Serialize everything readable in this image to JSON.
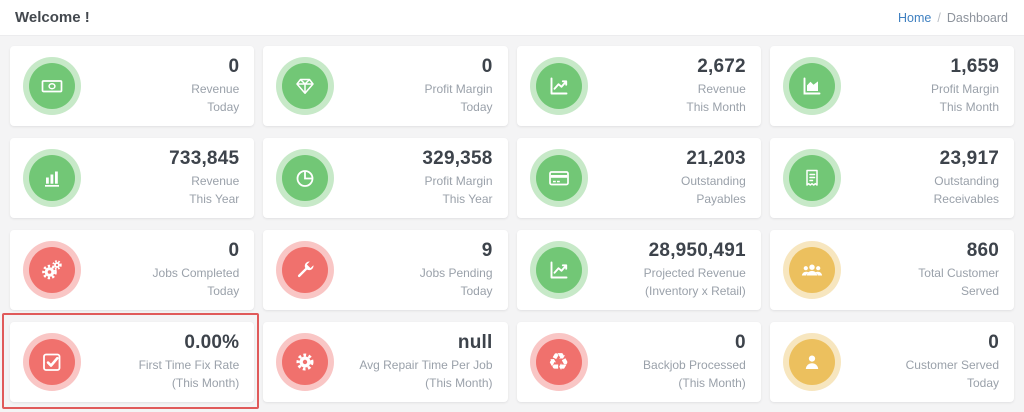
{
  "header": {
    "title": "Welcome !",
    "breadcrumb": {
      "home": "Home",
      "separator": "/",
      "current": "Dashboard"
    }
  },
  "colors": {
    "green": "#72c776",
    "red": "#f0716d",
    "yellow": "#ecc05e",
    "highlight": "#e05a5a",
    "link": "#3f80c1"
  },
  "cards": [
    {
      "icon": "money-bill",
      "color": "green",
      "value": "0",
      "label_lines": [
        "Revenue",
        "Today"
      ]
    },
    {
      "icon": "gem",
      "color": "green",
      "value": "0",
      "label_lines": [
        "Profit Margin",
        "Today"
      ]
    },
    {
      "icon": "chart-line",
      "color": "green",
      "value": "2,672",
      "label_lines": [
        "Revenue",
        "This Month"
      ]
    },
    {
      "icon": "chart-area",
      "color": "green",
      "value": "1,659",
      "label_lines": [
        "Profit Margin",
        "This Month"
      ]
    },
    {
      "icon": "chart-bar",
      "color": "green",
      "value": "733,845",
      "label_lines": [
        "Revenue",
        "This Year"
      ]
    },
    {
      "icon": "chart-pie",
      "color": "green",
      "value": "329,358",
      "label_lines": [
        "Profit Margin",
        "This Year"
      ]
    },
    {
      "icon": "credit-card",
      "color": "green",
      "value": "21,203",
      "label_lines": [
        "Outstanding",
        "Payables"
      ]
    },
    {
      "icon": "receipt",
      "color": "green",
      "value": "23,917",
      "label_lines": [
        "Outstanding",
        "Receivables"
      ]
    },
    {
      "icon": "cogs",
      "color": "red",
      "value": "0",
      "label_lines": [
        "Jobs Completed",
        "Today"
      ]
    },
    {
      "icon": "wrench",
      "color": "red",
      "value": "9",
      "label_lines": [
        "Jobs Pending",
        "Today"
      ]
    },
    {
      "icon": "chart-line",
      "color": "green",
      "value": "28,950,491",
      "label_lines": [
        "Projected Revenue",
        "(Inventory x Retail)"
      ]
    },
    {
      "icon": "users",
      "color": "yellow",
      "value": "860",
      "label_lines": [
        "Total Customer",
        "Served"
      ]
    },
    {
      "icon": "check-square",
      "color": "red",
      "value": "0.00%",
      "label_lines": [
        "First Time Fix Rate",
        "(This Month)"
      ],
      "highlighted": true
    },
    {
      "icon": "cog",
      "color": "red",
      "value": "null",
      "label_lines": [
        "Avg Repair Time Per Job",
        "(This Month)"
      ]
    },
    {
      "icon": "recycle",
      "color": "red",
      "value": "0",
      "label_lines": [
        "Backjob Processed",
        "(This Month)"
      ]
    },
    {
      "icon": "user",
      "color": "yellow",
      "value": "0",
      "label_lines": [
        "Customer Served",
        "Today"
      ]
    }
  ]
}
